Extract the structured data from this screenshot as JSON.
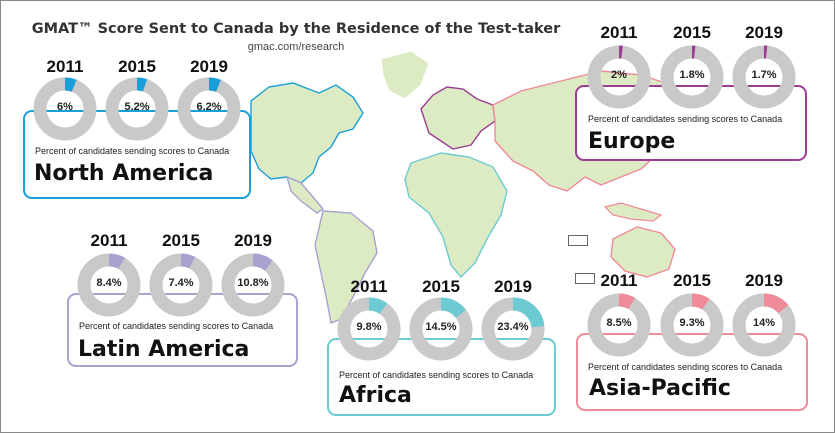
{
  "header": {
    "title": "GMAT™ Score Sent to Canada by the Residence of the Test-taker",
    "subtitle": "gmac.com/research"
  },
  "colors": {
    "north_america": "#1aa0d8",
    "europe": "#9b3e93",
    "latin_america": "#a8a2d0",
    "africa": "#6ccbd2",
    "asia_pacific": "#ef8a98",
    "donut_track": "#c9c9c9",
    "land": "#dcebc3"
  },
  "chart_data": {
    "type": "pie",
    "title": "GMAT™ Score Sent to Canada by the Residence of the Test-taker",
    "subtitle": "gmac.com/research",
    "years": [
      "2011",
      "2015",
      "2019"
    ],
    "caption": "Percent of candidates sending scores to Canada",
    "regions": [
      {
        "id": "north_america",
        "name": "North America",
        "values": [
          6,
          5.2,
          6.2
        ],
        "labels": [
          "6%",
          "5.2%",
          "6.2%"
        ]
      },
      {
        "id": "europe",
        "name": "Europe",
        "values": [
          2,
          1.8,
          1.7
        ],
        "labels": [
          "2%",
          "1.8%",
          "1.7%"
        ]
      },
      {
        "id": "latin_america",
        "name": "Latin America",
        "values": [
          8.4,
          7.4,
          10.8
        ],
        "labels": [
          "8.4%",
          "7.4%",
          "10.8%"
        ]
      },
      {
        "id": "africa",
        "name": "Africa",
        "values": [
          9.8,
          14.5,
          23.4
        ],
        "labels": [
          "9.8%",
          "14.5%",
          "23.4%"
        ]
      },
      {
        "id": "asia_pacific",
        "name": "Asia-Pacific",
        "values": [
          8.5,
          9.3,
          14
        ],
        "labels": [
          "8.5%",
          "9.3%",
          "14%"
        ]
      }
    ]
  }
}
